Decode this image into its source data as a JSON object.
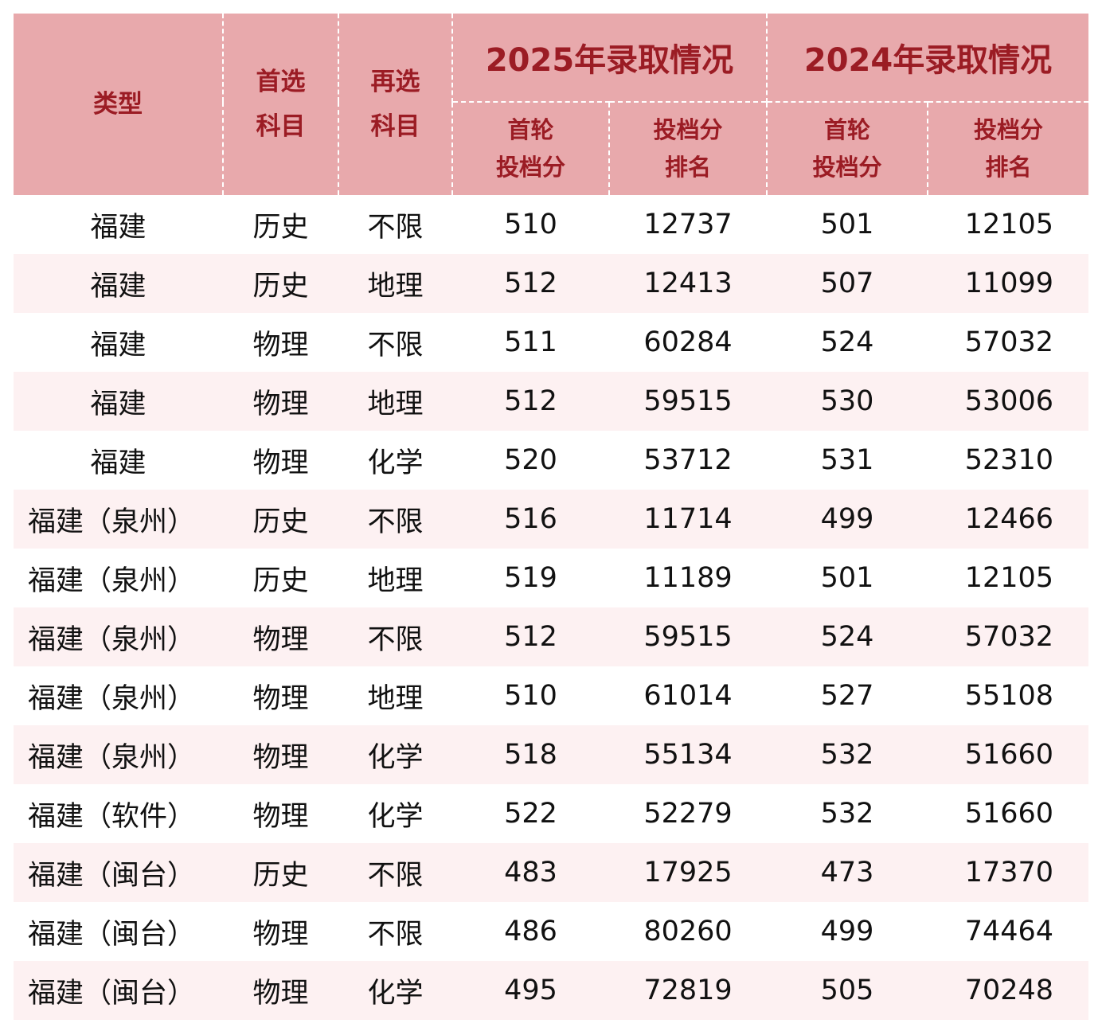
{
  "header": {
    "type": "类型",
    "first_subject": [
      "首选",
      "科目"
    ],
    "second_subject": [
      "再选",
      "科目"
    ],
    "year2025": "2025年录取情况",
    "year2024": "2024年录取情况",
    "first_round_score": [
      "首轮",
      "投档分"
    ],
    "score_rank": [
      "投档分",
      "排名"
    ]
  },
  "rows": [
    {
      "type": "福建",
      "first": "历史",
      "second": "不限",
      "s2025": "510",
      "r2025": "12737",
      "s2024": "501",
      "r2024": "12105"
    },
    {
      "type": "福建",
      "first": "历史",
      "second": "地理",
      "s2025": "512",
      "r2025": "12413",
      "s2024": "507",
      "r2024": "11099"
    },
    {
      "type": "福建",
      "first": "物理",
      "second": "不限",
      "s2025": "511",
      "r2025": "60284",
      "s2024": "524",
      "r2024": "57032"
    },
    {
      "type": "福建",
      "first": "物理",
      "second": "地理",
      "s2025": "512",
      "r2025": "59515",
      "s2024": "530",
      "r2024": "53006"
    },
    {
      "type": "福建",
      "first": "物理",
      "second": "化学",
      "s2025": "520",
      "r2025": "53712",
      "s2024": "531",
      "r2024": "52310"
    },
    {
      "type": "福建（泉州）",
      "first": "历史",
      "second": "不限",
      "s2025": "516",
      "r2025": "11714",
      "s2024": "499",
      "r2024": "12466"
    },
    {
      "type": "福建（泉州）",
      "first": "历史",
      "second": "地理",
      "s2025": "519",
      "r2025": "11189",
      "s2024": "501",
      "r2024": "12105"
    },
    {
      "type": "福建（泉州）",
      "first": "物理",
      "second": "不限",
      "s2025": "512",
      "r2025": "59515",
      "s2024": "524",
      "r2024": "57032"
    },
    {
      "type": "福建（泉州）",
      "first": "物理",
      "second": "地理",
      "s2025": "510",
      "r2025": "61014",
      "s2024": "527",
      "r2024": "55108"
    },
    {
      "type": "福建（泉州）",
      "first": "物理",
      "second": "化学",
      "s2025": "518",
      "r2025": "55134",
      "s2024": "532",
      "r2024": "51660"
    },
    {
      "type": "福建（软件）",
      "first": "物理",
      "second": "化学",
      "s2025": "522",
      "r2025": "52279",
      "s2024": "532",
      "r2024": "51660"
    },
    {
      "type": "福建（闽台）",
      "first": "历史",
      "second": "不限",
      "s2025": "483",
      "r2025": "17925",
      "s2024": "473",
      "r2024": "17370"
    },
    {
      "type": "福建（闽台）",
      "first": "物理",
      "second": "不限",
      "s2025": "486",
      "r2025": "80260",
      "s2024": "499",
      "r2024": "74464"
    },
    {
      "type": "福建（闽台）",
      "first": "物理",
      "second": "化学",
      "s2025": "495",
      "r2025": "72819",
      "s2024": "505",
      "r2024": "70248"
    }
  ]
}
